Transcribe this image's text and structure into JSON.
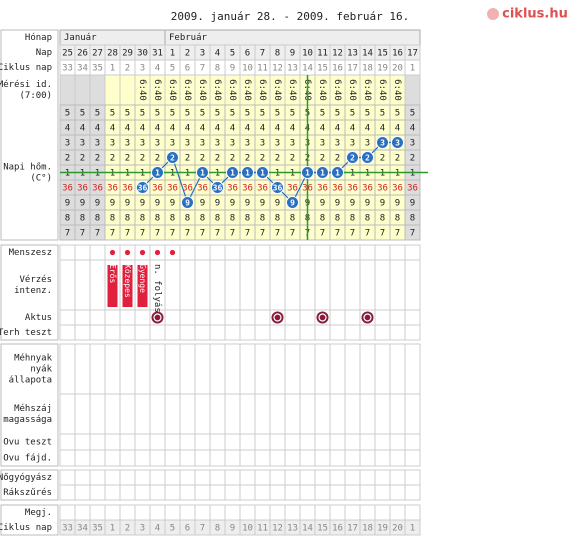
{
  "header": {
    "title": "2009. január 28. - 2009. február 16.",
    "logo": "ciklus.hu"
  },
  "row_labels": {
    "month": [
      "Hónap"
    ],
    "day": [
      "Nap"
    ],
    "cycle_day": [
      "Ciklus nap"
    ],
    "measure_time": [
      "Mérési id.",
      "(7:00)"
    ],
    "temperature": [
      "Napi hőm.",
      "(C°)"
    ],
    "menses": [
      "Menszesz"
    ],
    "bleeding": [
      "Vérzés",
      "intenz."
    ],
    "intercourse": [
      "Aktus"
    ],
    "pregnancy_test": [
      "Terh teszt"
    ],
    "cervical_mucus": [
      "Méhnyak",
      "nyák",
      "állapota"
    ],
    "cervix_height": [
      "Méhszáj",
      "magassága"
    ],
    "ovulation_test": [
      "Ovu teszt"
    ],
    "ovulation_pain": [
      "Ovu fájd."
    ],
    "gynecologist": [
      "Nőgyógyász"
    ],
    "screening": [
      "Rákszűrés"
    ],
    "notes": [
      "Megj."
    ],
    "cycle_day_bottom": [
      "Ciklus nap"
    ]
  },
  "months": [
    {
      "name": "Január",
      "days": [
        25,
        26,
        27,
        28,
        29,
        30,
        31
      ]
    },
    {
      "name": "Február",
      "days": [
        1,
        2,
        3,
        4,
        5,
        6,
        7,
        8,
        9,
        10,
        11,
        12,
        13,
        14,
        15,
        16,
        17
      ]
    }
  ],
  "cycle_days": [
    33,
    34,
    35,
    1,
    2,
    3,
    4,
    5,
    6,
    7,
    8,
    9,
    10,
    11,
    12,
    13,
    14,
    15,
    16,
    17,
    18,
    19,
    20,
    1
  ],
  "temperature": {
    "scale": [
      "5",
      "4",
      "3",
      "2",
      "1",
      "36",
      "9",
      "8",
      "7"
    ],
    "measure_time": [
      null,
      null,
      null,
      null,
      null,
      "6:40",
      "6:40",
      "6:40",
      "6:40",
      "6:40",
      "6:40",
      "6:40",
      "6:40",
      "6:40",
      "6:40",
      "6:40",
      "6:40",
      "6:40",
      "6:40",
      "6:40",
      "6:40",
      "6:40",
      "6:40",
      null
    ],
    "values": [
      null,
      null,
      null,
      null,
      null,
      36.0,
      36.1,
      36.2,
      35.9,
      36.1,
      36.0,
      36.1,
      36.1,
      36.1,
      36.0,
      35.9,
      36.1,
      36.1,
      36.1,
      36.2,
      36.2,
      36.3,
      36.3,
      null
    ],
    "labels": [
      null,
      null,
      null,
      null,
      null,
      "36",
      "1",
      "2",
      "9",
      "1",
      "36",
      "1",
      "1",
      "1",
      "36",
      "9",
      "1",
      "1",
      "1",
      "2",
      "2",
      "3",
      "3",
      null
    ],
    "color": "#2a6fc0"
  },
  "bleeding": {
    "color": "#e0203c",
    "days": [
      {
        "day": 28,
        "intensity": "Erős"
      },
      {
        "day": 29,
        "intensity": "Közepes"
      },
      {
        "day": 30,
        "intensity": "Gyenge"
      },
      {
        "day": 31,
        "intensity": "n. folyás",
        "bar": false
      },
      {
        "day": 1,
        "intensity": null,
        "bar": false
      }
    ]
  },
  "intercourse_days": [
    31,
    8,
    11,
    14
  ]
}
